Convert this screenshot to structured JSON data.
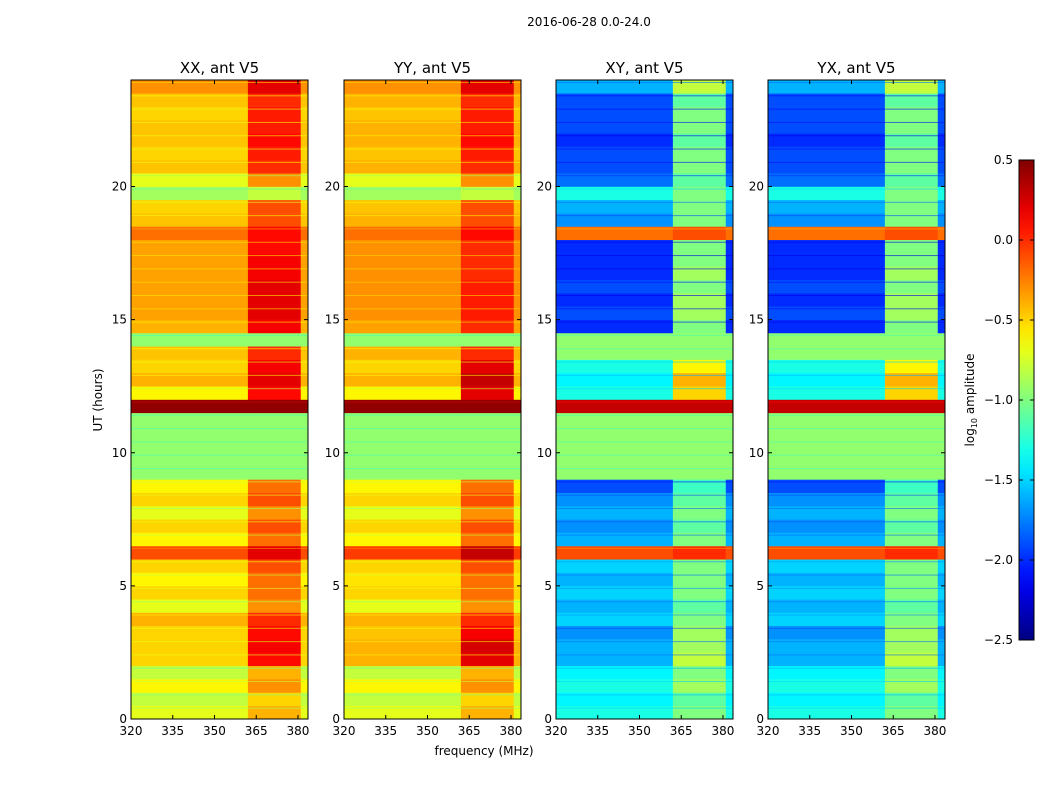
{
  "chart_data": {
    "type": "heatmap",
    "title": "2016-06-28 0.0-24.0",
    "xlabel": "frequency (MHz)",
    "ylabel": "UT (hours)",
    "xlim": [
      320,
      383.6
    ],
    "ylim": [
      0,
      24
    ],
    "xticks": [
      "320",
      "335",
      "350",
      "365",
      "380"
    ],
    "xtick_values": [
      320,
      335,
      350,
      365,
      380
    ],
    "yticks": [
      "0",
      "5",
      "10",
      "15",
      "20"
    ],
    "ytick_values": [
      0,
      5,
      10,
      15,
      20
    ],
    "time_bin_hours": 0.5,
    "freq_segments_mhz": [
      [
        320,
        362
      ],
      [
        362,
        381
      ],
      [
        381,
        383.6
      ]
    ],
    "colorbar": {
      "label_base": "log",
      "label_sub": "10",
      "label_rest": " amplitude",
      "range": [
        -2.5,
        0.5
      ],
      "ticks": [
        "0.5",
        "0.0",
        "−0.5",
        "−1.0",
        "−1.5",
        "−2.0",
        "−2.5"
      ],
      "tick_values": [
        0.5,
        0.0,
        -0.5,
        -1.0,
        -1.5,
        -2.0,
        -2.5
      ],
      "colormap": "jet"
    },
    "panels": [
      {
        "title": "XX, ant V5",
        "low": [
          -0.7,
          -0.8,
          -0.6,
          -0.8,
          -0.5,
          -0.5,
          -0.5,
          -0.4,
          -0.7,
          -0.5,
          -0.6,
          -0.5,
          -0.1,
          -0.6,
          -0.5,
          -0.7,
          -0.5,
          -0.6,
          -0.95,
          -0.95,
          -0.95,
          -0.95,
          -0.95,
          0.45,
          -0.6,
          -0.4,
          -0.5,
          -0.45,
          -0.95,
          -0.4,
          -0.35,
          -0.35,
          -0.35,
          -0.35,
          -0.35,
          -0.35,
          -0.2,
          -0.45,
          -0.5,
          -0.9,
          -0.7,
          -0.45,
          -0.5,
          -0.45,
          -0.45,
          -0.5,
          -0.45,
          -0.3
        ],
        "high": [
          -0.4,
          -0.5,
          -0.3,
          -0.4,
          0.1,
          0.15,
          0.1,
          0.0,
          -0.3,
          -0.2,
          -0.2,
          -0.1,
          0.2,
          -0.2,
          -0.1,
          -0.3,
          -0.1,
          -0.2,
          -0.95,
          -0.95,
          -0.95,
          -0.95,
          -0.95,
          0.45,
          0.1,
          0.2,
          0.15,
          0.0,
          -0.95,
          0.15,
          0.2,
          0.2,
          0.2,
          0.15,
          0.15,
          0.1,
          0.1,
          -0.1,
          -0.1,
          -0.8,
          -0.3,
          0.0,
          0.05,
          0.1,
          0.05,
          0.05,
          0.0,
          0.2
        ]
      },
      {
        "title": "YY, ant V5",
        "low": [
          -0.7,
          -0.8,
          -0.6,
          -0.8,
          -0.4,
          -0.4,
          -0.45,
          -0.4,
          -0.7,
          -0.5,
          -0.55,
          -0.5,
          -0.05,
          -0.6,
          -0.5,
          -0.7,
          -0.5,
          -0.6,
          -0.95,
          -0.95,
          -0.95,
          -0.95,
          -0.95,
          0.45,
          -0.6,
          -0.4,
          -0.5,
          -0.4,
          -0.95,
          -0.35,
          -0.3,
          -0.3,
          -0.3,
          -0.3,
          -0.3,
          -0.3,
          -0.2,
          -0.4,
          -0.45,
          -0.9,
          -0.7,
          -0.4,
          -0.45,
          -0.4,
          -0.4,
          -0.45,
          -0.4,
          -0.3
        ],
        "high": [
          -0.4,
          -0.5,
          -0.3,
          -0.4,
          0.2,
          0.25,
          0.15,
          0.0,
          -0.3,
          -0.2,
          -0.2,
          -0.1,
          0.3,
          -0.2,
          -0.1,
          -0.3,
          -0.1,
          -0.2,
          -0.95,
          -0.95,
          -0.95,
          -0.95,
          -0.95,
          0.45,
          0.2,
          0.3,
          0.2,
          0.0,
          -0.95,
          0.0,
          0.05,
          0.05,
          0.05,
          0.0,
          0.0,
          0.0,
          0.1,
          -0.1,
          -0.1,
          -0.8,
          -0.3,
          0.0,
          0.05,
          0.1,
          0.05,
          0.05,
          0.0,
          0.2
        ]
      },
      {
        "title": "XY, ant V5",
        "low": [
          -1.3,
          -1.4,
          -1.3,
          -1.4,
          -1.6,
          -1.6,
          -1.7,
          -1.5,
          -1.6,
          -1.5,
          -1.6,
          -1.5,
          -0.1,
          -1.6,
          -1.7,
          -1.6,
          -1.7,
          -1.9,
          -0.95,
          -0.95,
          -0.95,
          -0.95,
          -0.95,
          0.3,
          -1.3,
          -1.4,
          -1.3,
          -0.95,
          -0.95,
          -2.0,
          -1.9,
          -2.0,
          -1.9,
          -2.0,
          -2.0,
          -2.0,
          -0.2,
          -1.7,
          -1.6,
          -1.3,
          -1.8,
          -1.9,
          -1.9,
          -2.0,
          -1.9,
          -1.9,
          -1.9,
          -1.6
        ],
        "high": [
          -1.0,
          -1.1,
          -0.9,
          -1.0,
          -0.8,
          -0.9,
          -0.9,
          -1.0,
          -1.1,
          -1.0,
          -1.0,
          -1.0,
          0.0,
          -1.0,
          -1.1,
          -1.0,
          -1.1,
          -1.2,
          -0.95,
          -0.95,
          -0.95,
          -0.95,
          -0.95,
          0.3,
          -0.5,
          -0.4,
          -0.6,
          -0.95,
          -0.95,
          -1.0,
          -0.9,
          -0.9,
          -1.0,
          -0.9,
          -1.0,
          -1.0,
          -0.1,
          -1.0,
          -1.0,
          -1.0,
          -1.1,
          -1.0,
          -1.0,
          -1.1,
          -1.0,
          -1.0,
          -1.1,
          -0.8
        ]
      },
      {
        "title": "YX, ant V5",
        "low": [
          -1.3,
          -1.4,
          -1.3,
          -1.4,
          -1.6,
          -1.6,
          -1.7,
          -1.5,
          -1.6,
          -1.5,
          -1.6,
          -1.5,
          -0.1,
          -1.6,
          -1.7,
          -1.6,
          -1.7,
          -1.9,
          -0.95,
          -0.95,
          -0.95,
          -0.95,
          -0.95,
          0.3,
          -1.3,
          -1.4,
          -1.3,
          -0.95,
          -0.95,
          -2.0,
          -1.9,
          -2.0,
          -1.9,
          -2.0,
          -2.0,
          -2.0,
          -0.2,
          -1.7,
          -1.6,
          -1.3,
          -1.8,
          -1.9,
          -1.9,
          -2.0,
          -1.9,
          -1.9,
          -1.9,
          -1.6
        ],
        "high": [
          -1.0,
          -1.1,
          -0.9,
          -1.0,
          -0.8,
          -0.9,
          -0.9,
          -1.0,
          -1.1,
          -1.0,
          -1.0,
          -1.0,
          0.0,
          -1.0,
          -1.1,
          -1.0,
          -1.1,
          -1.2,
          -0.95,
          -0.95,
          -0.95,
          -0.95,
          -0.95,
          0.3,
          -0.5,
          -0.4,
          -0.6,
          -0.95,
          -0.95,
          -1.0,
          -0.9,
          -0.9,
          -1.0,
          -0.9,
          -1.0,
          -1.0,
          -0.1,
          -1.0,
          -1.0,
          -1.0,
          -1.1,
          -1.0,
          -1.0,
          -1.1,
          -1.0,
          -1.0,
          -1.1,
          -0.8
        ]
      }
    ]
  }
}
